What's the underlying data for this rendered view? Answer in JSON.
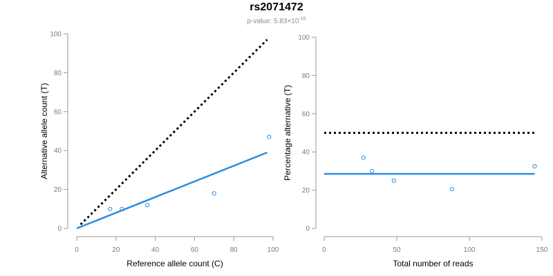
{
  "header": {
    "title": "rs2071472",
    "subtitle_prefix": "p-value: 5.83×10",
    "subtitle_exponent": "-16"
  },
  "colors": {
    "fit_line": "#2b8ce0",
    "points": "#2b8ce0",
    "reference_line": "#000000",
    "axis": "#9a9a9a",
    "tick_label": "#7a7a7a"
  },
  "chart_data": [
    {
      "type": "scatter",
      "xlabel": "Reference allele count (C)",
      "ylabel": "Alternative allele count (T)",
      "xlim": [
        0,
        100
      ],
      "ylim": [
        0,
        100
      ],
      "xticks": [
        0,
        20,
        40,
        60,
        80,
        100
      ],
      "yticks": [
        0,
        20,
        40,
        60,
        80,
        100
      ],
      "grid": false,
      "points": [
        {
          "x": 17,
          "y": 10
        },
        {
          "x": 23,
          "y": 10
        },
        {
          "x": 36,
          "y": 12
        },
        {
          "x": 70,
          "y": 18
        },
        {
          "x": 98,
          "y": 47
        }
      ],
      "fit_line": {
        "x": [
          0,
          97
        ],
        "y": [
          0,
          39
        ]
      },
      "reference_line": {
        "x": [
          2,
          97
        ],
        "y": [
          2,
          97
        ],
        "style": "dotted"
      }
    },
    {
      "type": "scatter",
      "xlabel": "Total number of reads",
      "ylabel": "Percentage alternative (T)",
      "xlim": [
        0,
        150
      ],
      "ylim": [
        0,
        100
      ],
      "xticks": [
        0,
        50,
        100,
        150
      ],
      "yticks": [
        0,
        20,
        40,
        60,
        80,
        100
      ],
      "grid": false,
      "points": [
        {
          "x": 27,
          "y": 37
        },
        {
          "x": 33,
          "y": 30
        },
        {
          "x": 48,
          "y": 25
        },
        {
          "x": 88,
          "y": 20.5
        },
        {
          "x": 145,
          "y": 32.5
        }
      ],
      "fit_line": {
        "x": [
          0,
          145
        ],
        "y": [
          28.5,
          28.5
        ]
      },
      "reference_line": {
        "x": [
          0,
          145
        ],
        "y": [
          50,
          50
        ],
        "style": "dotted"
      }
    }
  ]
}
